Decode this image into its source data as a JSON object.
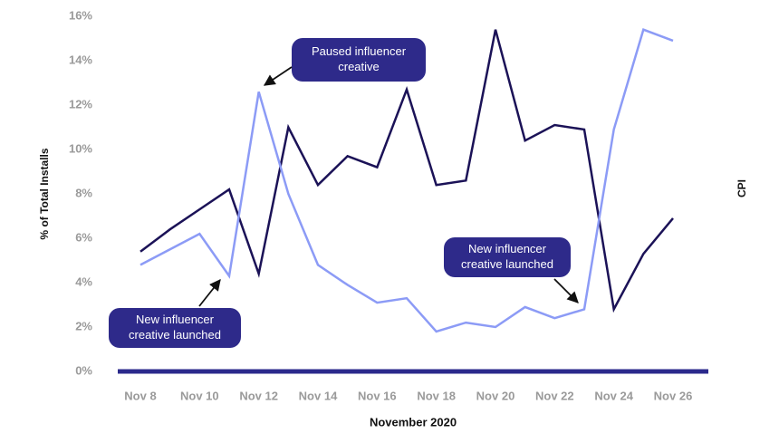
{
  "chart_data": {
    "type": "line",
    "y_label": "% of Total Installs",
    "y2_label": "CPI",
    "x_label": "November 2020",
    "categories": [
      "Nov 8",
      null,
      "Nov 10",
      null,
      "Nov 12",
      null,
      "Nov 14",
      null,
      "Nov 16",
      null,
      "Nov 18",
      null,
      "Nov 20",
      null,
      "Nov 22",
      null,
      "Nov 24",
      null,
      "Nov 26"
    ],
    "series": [
      {
        "color": "#1b1257",
        "values": [
          5.4,
          6.4,
          7.3,
          8.2,
          4.4,
          11.0,
          8.4,
          9.7,
          9.2,
          12.7,
          8.4,
          8.6,
          15.4,
          10.4,
          11.1,
          10.9,
          2.8,
          5.3,
          6.9
        ]
      },
      {
        "color": "#8c9bf6",
        "values": [
          4.8,
          5.5,
          6.2,
          4.3,
          12.6,
          8.0,
          4.8,
          3.9,
          3.1,
          3.3,
          1.8,
          2.2,
          2.0,
          2.9,
          2.4,
          2.8,
          10.9,
          15.4,
          14.9
        ]
      }
    ],
    "ylim": [
      0,
      16
    ],
    "yticks": [
      {
        "value": 0,
        "label": "0%"
      },
      {
        "value": 2,
        "label": "2%"
      },
      {
        "value": 4,
        "label": "4%"
      },
      {
        "value": 6,
        "label": "6%"
      },
      {
        "value": 8,
        "label": "8%"
      },
      {
        "value": 10,
        "label": "10%"
      },
      {
        "value": 12,
        "label": "12%"
      },
      {
        "value": 14,
        "label": "14%"
      },
      {
        "value": 16,
        "label": "16%"
      }
    ],
    "annotations": [
      {
        "lines": [
          "Paused influencer",
          "creative"
        ]
      },
      {
        "lines": [
          "New influencer",
          "creative launched"
        ]
      },
      {
        "lines": [
          "New influencer",
          "creative launched"
        ]
      }
    ]
  }
}
